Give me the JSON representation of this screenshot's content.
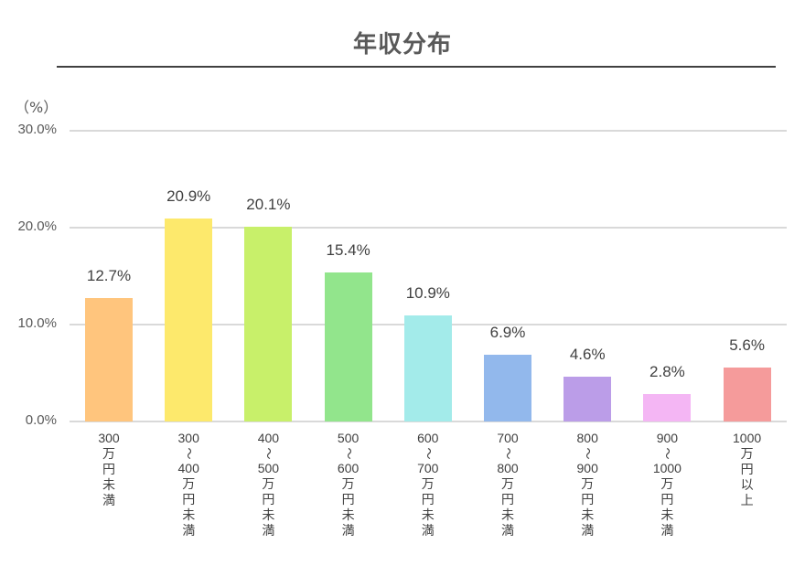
{
  "title": "年収分布",
  "y_unit": "（%）",
  "y_ticks": [
    "30.0%",
    "20.0%",
    "10.0%",
    "0.0%"
  ],
  "bars": [
    {
      "label_lines": [
        "300"
      ],
      "label_chars": [
        "万",
        "円",
        "未",
        "満"
      ],
      "value": 12.7,
      "value_label": "12.7%",
      "color": "#FFC57D"
    },
    {
      "label_lines": [
        "300",
        "〜",
        "400"
      ],
      "label_chars": [
        "万",
        "円",
        "未",
        "満"
      ],
      "value": 20.9,
      "value_label": "20.9%",
      "color": "#FDE96C"
    },
    {
      "label_lines": [
        "400",
        "〜",
        "500"
      ],
      "label_chars": [
        "万",
        "円",
        "未",
        "満"
      ],
      "value": 20.1,
      "value_label": "20.1%",
      "color": "#C8F06A"
    },
    {
      "label_lines": [
        "500",
        "〜",
        "600"
      ],
      "label_chars": [
        "万",
        "円",
        "未",
        "満"
      ],
      "value": 15.4,
      "value_label": "15.4%",
      "color": "#92E58C"
    },
    {
      "label_lines": [
        "600",
        "〜",
        "700"
      ],
      "label_chars": [
        "万",
        "円",
        "未",
        "満"
      ],
      "value": 10.9,
      "value_label": "10.9%",
      "color": "#A3EBEA"
    },
    {
      "label_lines": [
        "700",
        "〜",
        "800"
      ],
      "label_chars": [
        "万",
        "円",
        "未",
        "満"
      ],
      "value": 6.9,
      "value_label": "6.9%",
      "color": "#92B8EC"
    },
    {
      "label_lines": [
        "800",
        "〜",
        "900"
      ],
      "label_chars": [
        "万",
        "円",
        "未",
        "満"
      ],
      "value": 4.6,
      "value_label": "4.6%",
      "color": "#BB9DE8"
    },
    {
      "label_lines": [
        "900",
        "〜",
        "1000"
      ],
      "label_chars": [
        "万",
        "円",
        "未",
        "満"
      ],
      "value": 2.8,
      "value_label": "2.8%",
      "color": "#F4B6F4"
    },
    {
      "label_lines": [
        "1000"
      ],
      "label_chars": [
        "万",
        "円",
        "以",
        "上"
      ],
      "value": 5.6,
      "value_label": "5.6%",
      "color": "#F59B9B"
    }
  ],
  "chart_data": {
    "type": "bar",
    "title": "年収分布",
    "xlabel": "",
    "ylabel": "（%）",
    "ylim": [
      0,
      30
    ],
    "yticks": [
      0,
      10,
      20,
      30
    ],
    "ytick_labels": [
      "0.0%",
      "10.0%",
      "20.0%",
      "30.0%"
    ],
    "grid": true,
    "legend": null,
    "categories": [
      "300万円未満",
      "300〜400万円未満",
      "400〜500万円未満",
      "500〜600万円未満",
      "600〜700万円未満",
      "700〜800万円未満",
      "800〜900万円未満",
      "900〜1000万円未満",
      "1000万円以上"
    ],
    "values": [
      12.7,
      20.9,
      20.1,
      15.4,
      10.9,
      6.9,
      4.6,
      2.8,
      5.6
    ],
    "data_labels": [
      "12.7%",
      "20.9%",
      "20.1%",
      "15.4%",
      "10.9%",
      "6.9%",
      "4.6%",
      "2.8%",
      "5.6%"
    ],
    "colors": [
      "#FFC57D",
      "#FDE96C",
      "#C8F06A",
      "#92E58C",
      "#A3EBEA",
      "#92B8EC",
      "#BB9DE8",
      "#F4B6F4",
      "#F59B9B"
    ]
  }
}
